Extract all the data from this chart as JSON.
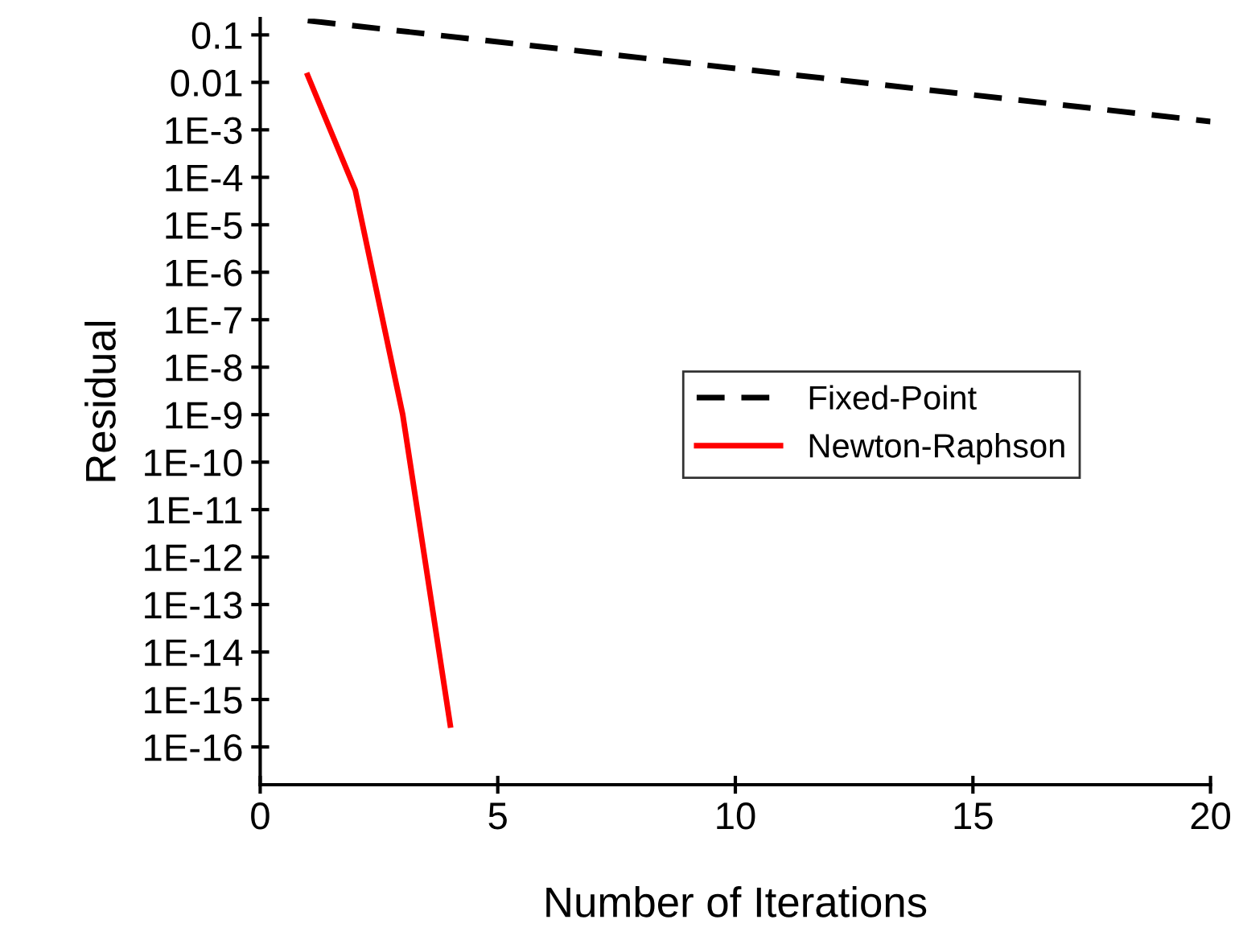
{
  "chart_data": {
    "type": "line",
    "xlabel": "Number of Iterations",
    "ylabel": "Residual",
    "log": "y",
    "grid": false,
    "legend": "right",
    "marker": "none",
    "xlim": [
      0,
      20
    ],
    "xticks": [
      0,
      5,
      10,
      15,
      20
    ],
    "ylim": [
      1.6e-17,
      0.22
    ],
    "yticks": [
      0.1,
      0.01,
      {
        "value": 0.001,
        "label": "1E-3"
      },
      {
        "value": 0.0001,
        "label": "1E-4"
      },
      {
        "value": 1e-05,
        "label": "1E-5"
      },
      {
        "value": 1e-06,
        "label": "1E-6"
      },
      {
        "value": 1e-07,
        "label": "1E-7"
      },
      {
        "value": 1e-08,
        "label": "1E-8"
      },
      {
        "value": 1e-09,
        "label": "1E-9"
      },
      {
        "value": 1e-10,
        "label": "1E-10"
      },
      {
        "value": 1e-11,
        "label": "1E-11"
      },
      {
        "value": 1e-12,
        "label": "1E-12"
      },
      {
        "value": 1e-13,
        "label": "1E-13"
      },
      {
        "value": 1e-14,
        "label": "1E-14"
      },
      {
        "value": 1e-15,
        "label": "1E-15"
      },
      {
        "value": 1e-16,
        "label": "1E-16"
      }
    ],
    "series": [
      {
        "name": "Fixed-Point",
        "color": "#000000",
        "line_style": "dashed",
        "x": [
          1,
          20
        ],
        "values": [
          0.2,
          0.0015
        ]
      },
      {
        "name": "Newton-Raphson",
        "color": "#ff0000",
        "line_style": "solid",
        "x": [
          1,
          2,
          3,
          4
        ],
        "values": [
          0.014,
          5.4e-05,
          1e-09,
          2.9e-16
        ]
      }
    ]
  }
}
